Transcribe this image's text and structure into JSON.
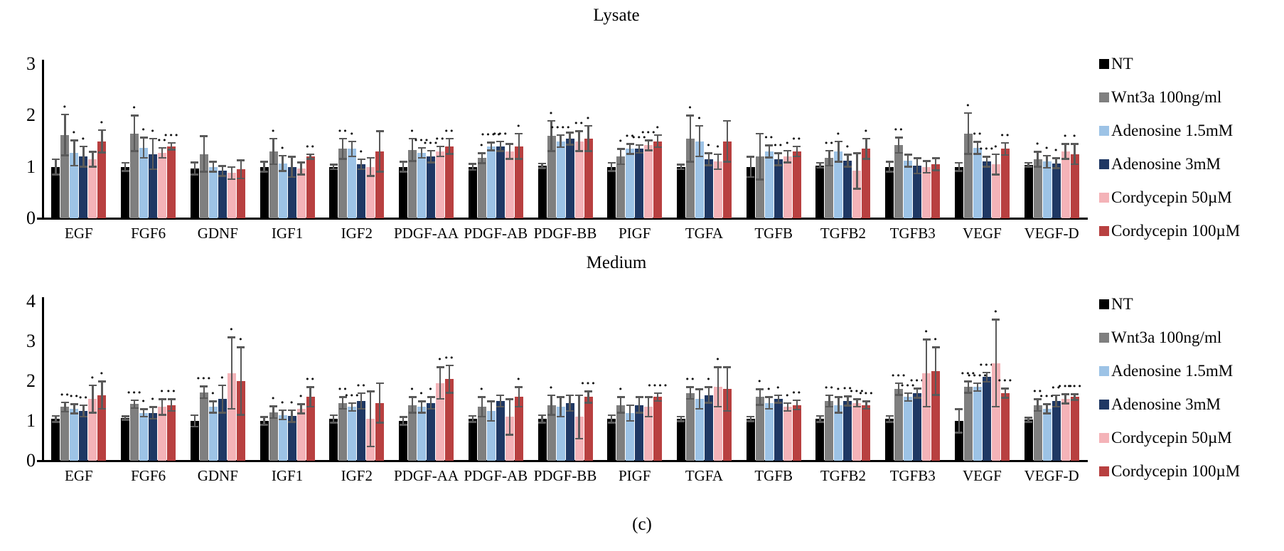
{
  "figure": {
    "caption": "(c)"
  },
  "legend": {
    "entries": [
      {
        "label": "NT",
        "color": "#000000"
      },
      {
        "label": "Wnt3a 100ng/ml",
        "color": "#7f7f7f"
      },
      {
        "label": "Adenosine 1.5mM",
        "color": "#9dc3e6"
      },
      {
        "label": "Adenosine 3mM",
        "color": "#1f3864"
      },
      {
        "label": "Cordycepin 50µM",
        "color": "#f4b3b8"
      },
      {
        "label": "Cordycepin 100µM",
        "color": "#b84040"
      }
    ]
  },
  "chart_data": [
    {
      "type": "bar",
      "title": "Lysate",
      "xlabel": "",
      "ylabel": "",
      "ylim": [
        0,
        3
      ],
      "yticks": [
        0,
        1,
        2,
        3
      ],
      "grid": false,
      "error_bars": true,
      "legend_position": "right",
      "sig_note": "dot markers above error bars indicate significance stars (count = number of dots)",
      "categories": [
        "EGF",
        "FGF6",
        "GDNF",
        "IGF1",
        "IGF2",
        "PDGF-AA",
        "PDGF-AB",
        "PDGF-BB",
        "PIGF",
        "TGFA",
        "TGFB",
        "TGFB2",
        "TGFB3",
        "VEGF",
        "VEGF-D"
      ],
      "series": [
        {
          "name": "NT",
          "color": "#000000",
          "values": [
            1.0,
            1.0,
            0.97,
            1.0,
            1.0,
            1.0,
            1.0,
            1.02,
            1.0,
            1.0,
            1.0,
            1.03,
            1.0,
            1.0,
            1.04
          ],
          "errors": [
            0.15,
            0.08,
            0.12,
            0.1,
            0.05,
            0.1,
            0.06,
            0.05,
            0.08,
            0.05,
            0.2,
            0.05,
            0.1,
            0.08,
            0.04
          ],
          "sig": [
            0,
            0,
            0,
            0,
            0,
            0,
            0,
            0,
            0,
            0,
            0,
            0,
            0,
            0,
            0
          ]
        },
        {
          "name": "Wnt3a 100ng/ml",
          "color": "#7f7f7f",
          "values": [
            1.62,
            1.65,
            1.25,
            1.3,
            1.35,
            1.33,
            1.17,
            1.6,
            1.2,
            1.55,
            1.2,
            1.17,
            1.42,
            1.65,
            1.15
          ],
          "errors": [
            0.4,
            0.35,
            0.35,
            0.25,
            0.2,
            0.22,
            0.1,
            0.3,
            0.15,
            0.45,
            0.45,
            0.15,
            0.15,
            0.4,
            0.15
          ],
          "sig": [
            1,
            1,
            0,
            1,
            2,
            1,
            1,
            1,
            1,
            1,
            0,
            2,
            2,
            1,
            1
          ]
        },
        {
          "name": "Adenosine 1.5mM",
          "color": "#9dc3e6",
          "values": [
            1.27,
            1.37,
            1.0,
            1.07,
            1.35,
            1.27,
            1.4,
            1.5,
            1.35,
            1.5,
            1.3,
            1.3,
            1.12,
            1.37,
            1.1
          ],
          "errors": [
            0.25,
            0.2,
            0.1,
            0.15,
            0.15,
            0.1,
            0.08,
            0.12,
            0.1,
            0.3,
            0.12,
            0.2,
            0.12,
            0.12,
            0.12
          ],
          "sig": [
            1,
            1,
            0,
            1,
            1,
            3,
            4,
            4,
            2,
            1,
            2,
            1,
            0,
            2,
            1
          ]
        },
        {
          "name": "Adenosine 3mM",
          "color": "#1f3864",
          "values": [
            1.2,
            1.25,
            0.92,
            1.0,
            1.05,
            1.2,
            1.4,
            1.55,
            1.35,
            1.15,
            1.15,
            1.12,
            1.02,
            1.1,
            1.07
          ],
          "errors": [
            0.2,
            0.3,
            0.1,
            0.2,
            0.1,
            0.12,
            0.1,
            0.12,
            0.08,
            0.12,
            0.12,
            0.12,
            0.15,
            0.1,
            0.1
          ],
          "sig": [
            1,
            1,
            0,
            0,
            1,
            3,
            3,
            0,
            3,
            1,
            2,
            1,
            0,
            3,
            1
          ]
        },
        {
          "name": "Cordycepin 50µM",
          "color": "#f4b3b8",
          "values": [
            1.15,
            1.27,
            0.88,
            0.97,
            1.0,
            1.3,
            1.3,
            1.5,
            1.42,
            1.1,
            1.2,
            0.92,
            1.0,
            1.05,
            1.3
          ],
          "errors": [
            0.15,
            0.1,
            0.12,
            0.12,
            0.18,
            0.1,
            0.15,
            0.2,
            0.1,
            0.15,
            0.12,
            0.35,
            0.12,
            0.2,
            0.15
          ],
          "sig": [
            0,
            2,
            0,
            0,
            0,
            2,
            0,
            2,
            3,
            1,
            1,
            0,
            0,
            1,
            1
          ]
        },
        {
          "name": "Cordycepin 100µM",
          "color": "#b84040",
          "values": [
            1.5,
            1.4,
            0.95,
            1.2,
            1.3,
            1.4,
            1.4,
            1.55,
            1.5,
            1.5,
            1.3,
            1.35,
            1.05,
            1.35,
            1.25
          ],
          "errors": [
            0.22,
            0.07,
            0.18,
            0.05,
            0.4,
            0.15,
            0.25,
            0.25,
            0.12,
            0.4,
            0.1,
            0.2,
            0.12,
            0.12,
            0.2
          ],
          "sig": [
            1,
            3,
            0,
            2,
            0,
            2,
            1,
            1,
            1,
            0,
            2,
            1,
            0,
            2,
            1
          ]
        }
      ]
    },
    {
      "type": "bar",
      "title": "Medium",
      "xlabel": "",
      "ylabel": "",
      "ylim": [
        0,
        4
      ],
      "yticks": [
        0,
        1,
        2,
        3,
        4
      ],
      "grid": false,
      "error_bars": true,
      "legend_position": "right",
      "sig_note": "dot markers above error bars indicate significance stars (count = number of dots)",
      "categories": [
        "EGF",
        "FGF6",
        "GDNF",
        "IGF1",
        "IGF2",
        "PDGF-AA",
        "PDGF-AB",
        "PDGF-BB",
        "PIGF",
        "TGFA",
        "TGFB",
        "TGFB2",
        "TGFB3",
        "VEGF",
        "VEGF-D"
      ],
      "series": [
        {
          "name": "NT",
          "color": "#000000",
          "values": [
            1.05,
            1.07,
            1.0,
            1.0,
            1.05,
            1.0,
            1.05,
            1.05,
            1.05,
            1.05,
            1.05,
            1.05,
            1.05,
            1.0,
            1.03
          ],
          "errors": [
            0.08,
            0.05,
            0.15,
            0.1,
            0.1,
            0.1,
            0.08,
            0.1,
            0.1,
            0.06,
            0.06,
            0.08,
            0.08,
            0.3,
            0.06
          ],
          "sig": [
            0,
            0,
            0,
            0,
            0,
            0,
            0,
            0,
            0,
            0,
            0,
            0,
            0,
            0,
            0
          ]
        },
        {
          "name": "Wnt3a 100ng/ml",
          "color": "#7f7f7f",
          "values": [
            1.35,
            1.42,
            1.72,
            1.22,
            1.45,
            1.4,
            1.35,
            1.4,
            1.4,
            1.7,
            1.6,
            1.5,
            1.8,
            1.85,
            1.4
          ],
          "errors": [
            0.12,
            0.1,
            0.15,
            0.15,
            0.15,
            0.2,
            0.25,
            0.25,
            0.2,
            0.15,
            0.2,
            0.15,
            0.15,
            0.15,
            0.15
          ],
          "sig": [
            2,
            3,
            3,
            1,
            2,
            1,
            1,
            1,
            1,
            2,
            1,
            2,
            3,
            3,
            2
          ]
        },
        {
          "name": "Adenosine 1.5mM",
          "color": "#9dc3e6",
          "values": [
            1.3,
            1.2,
            1.35,
            1.15,
            1.35,
            1.35,
            1.25,
            1.35,
            1.2,
            1.55,
            1.45,
            1.4,
            1.6,
            1.85,
            1.3
          ],
          "errors": [
            0.12,
            0.1,
            0.15,
            0.12,
            0.1,
            0.15,
            0.25,
            0.25,
            0.2,
            0.25,
            0.15,
            0.2,
            0.1,
            0.1,
            0.12
          ],
          "sig": [
            2,
            1,
            1,
            1,
            3,
            1,
            0,
            0,
            0,
            0,
            1,
            1,
            3,
            4,
            3
          ]
        },
        {
          "name": "Adenosine 3mM",
          "color": "#1f3864",
          "values": [
            1.25,
            1.2,
            1.55,
            1.12,
            1.5,
            1.45,
            1.5,
            1.45,
            1.4,
            1.65,
            1.55,
            1.5,
            1.7,
            2.1,
            1.5
          ],
          "errors": [
            0.15,
            0.15,
            0.35,
            0.15,
            0.2,
            0.15,
            0.15,
            0.2,
            0.2,
            0.2,
            0.1,
            0.12,
            0.12,
            0.12,
            0.15
          ],
          "sig": [
            2,
            1,
            1,
            1,
            2,
            1,
            0,
            0,
            0,
            1,
            1,
            2,
            3,
            3,
            2
          ]
        },
        {
          "name": "Cordycepin 50µM",
          "color": "#f4b3b8",
          "values": [
            1.55,
            1.35,
            2.2,
            1.3,
            1.05,
            1.95,
            1.1,
            1.1,
            1.35,
            1.85,
            1.35,
            1.45,
            2.2,
            2.45,
            1.55
          ],
          "errors": [
            0.35,
            0.2,
            0.9,
            0.12,
            0.7,
            0.4,
            0.45,
            0.55,
            0.25,
            0.5,
            0.1,
            0.1,
            0.85,
            1.1,
            0.12
          ],
          "sig": [
            1,
            1,
            1,
            1,
            0,
            1,
            0,
            0,
            0,
            1,
            1,
            3,
            1,
            1,
            3
          ]
        },
        {
          "name": "Cordycepin 100µM",
          "color": "#b84040",
          "values": [
            1.65,
            1.4,
            2.0,
            1.6,
            1.45,
            2.05,
            1.6,
            1.6,
            1.6,
            1.8,
            1.4,
            1.4,
            2.25,
            1.7,
            1.6
          ],
          "errors": [
            0.35,
            0.15,
            0.85,
            0.25,
            0.5,
            0.35,
            0.25,
            0.15,
            0.1,
            0.55,
            0.12,
            0.1,
            0.6,
            0.12,
            0.08
          ],
          "sig": [
            1,
            2,
            1,
            2,
            0,
            2,
            1,
            3,
            4,
            0,
            2,
            3,
            1,
            3,
            3
          ]
        }
      ]
    }
  ]
}
